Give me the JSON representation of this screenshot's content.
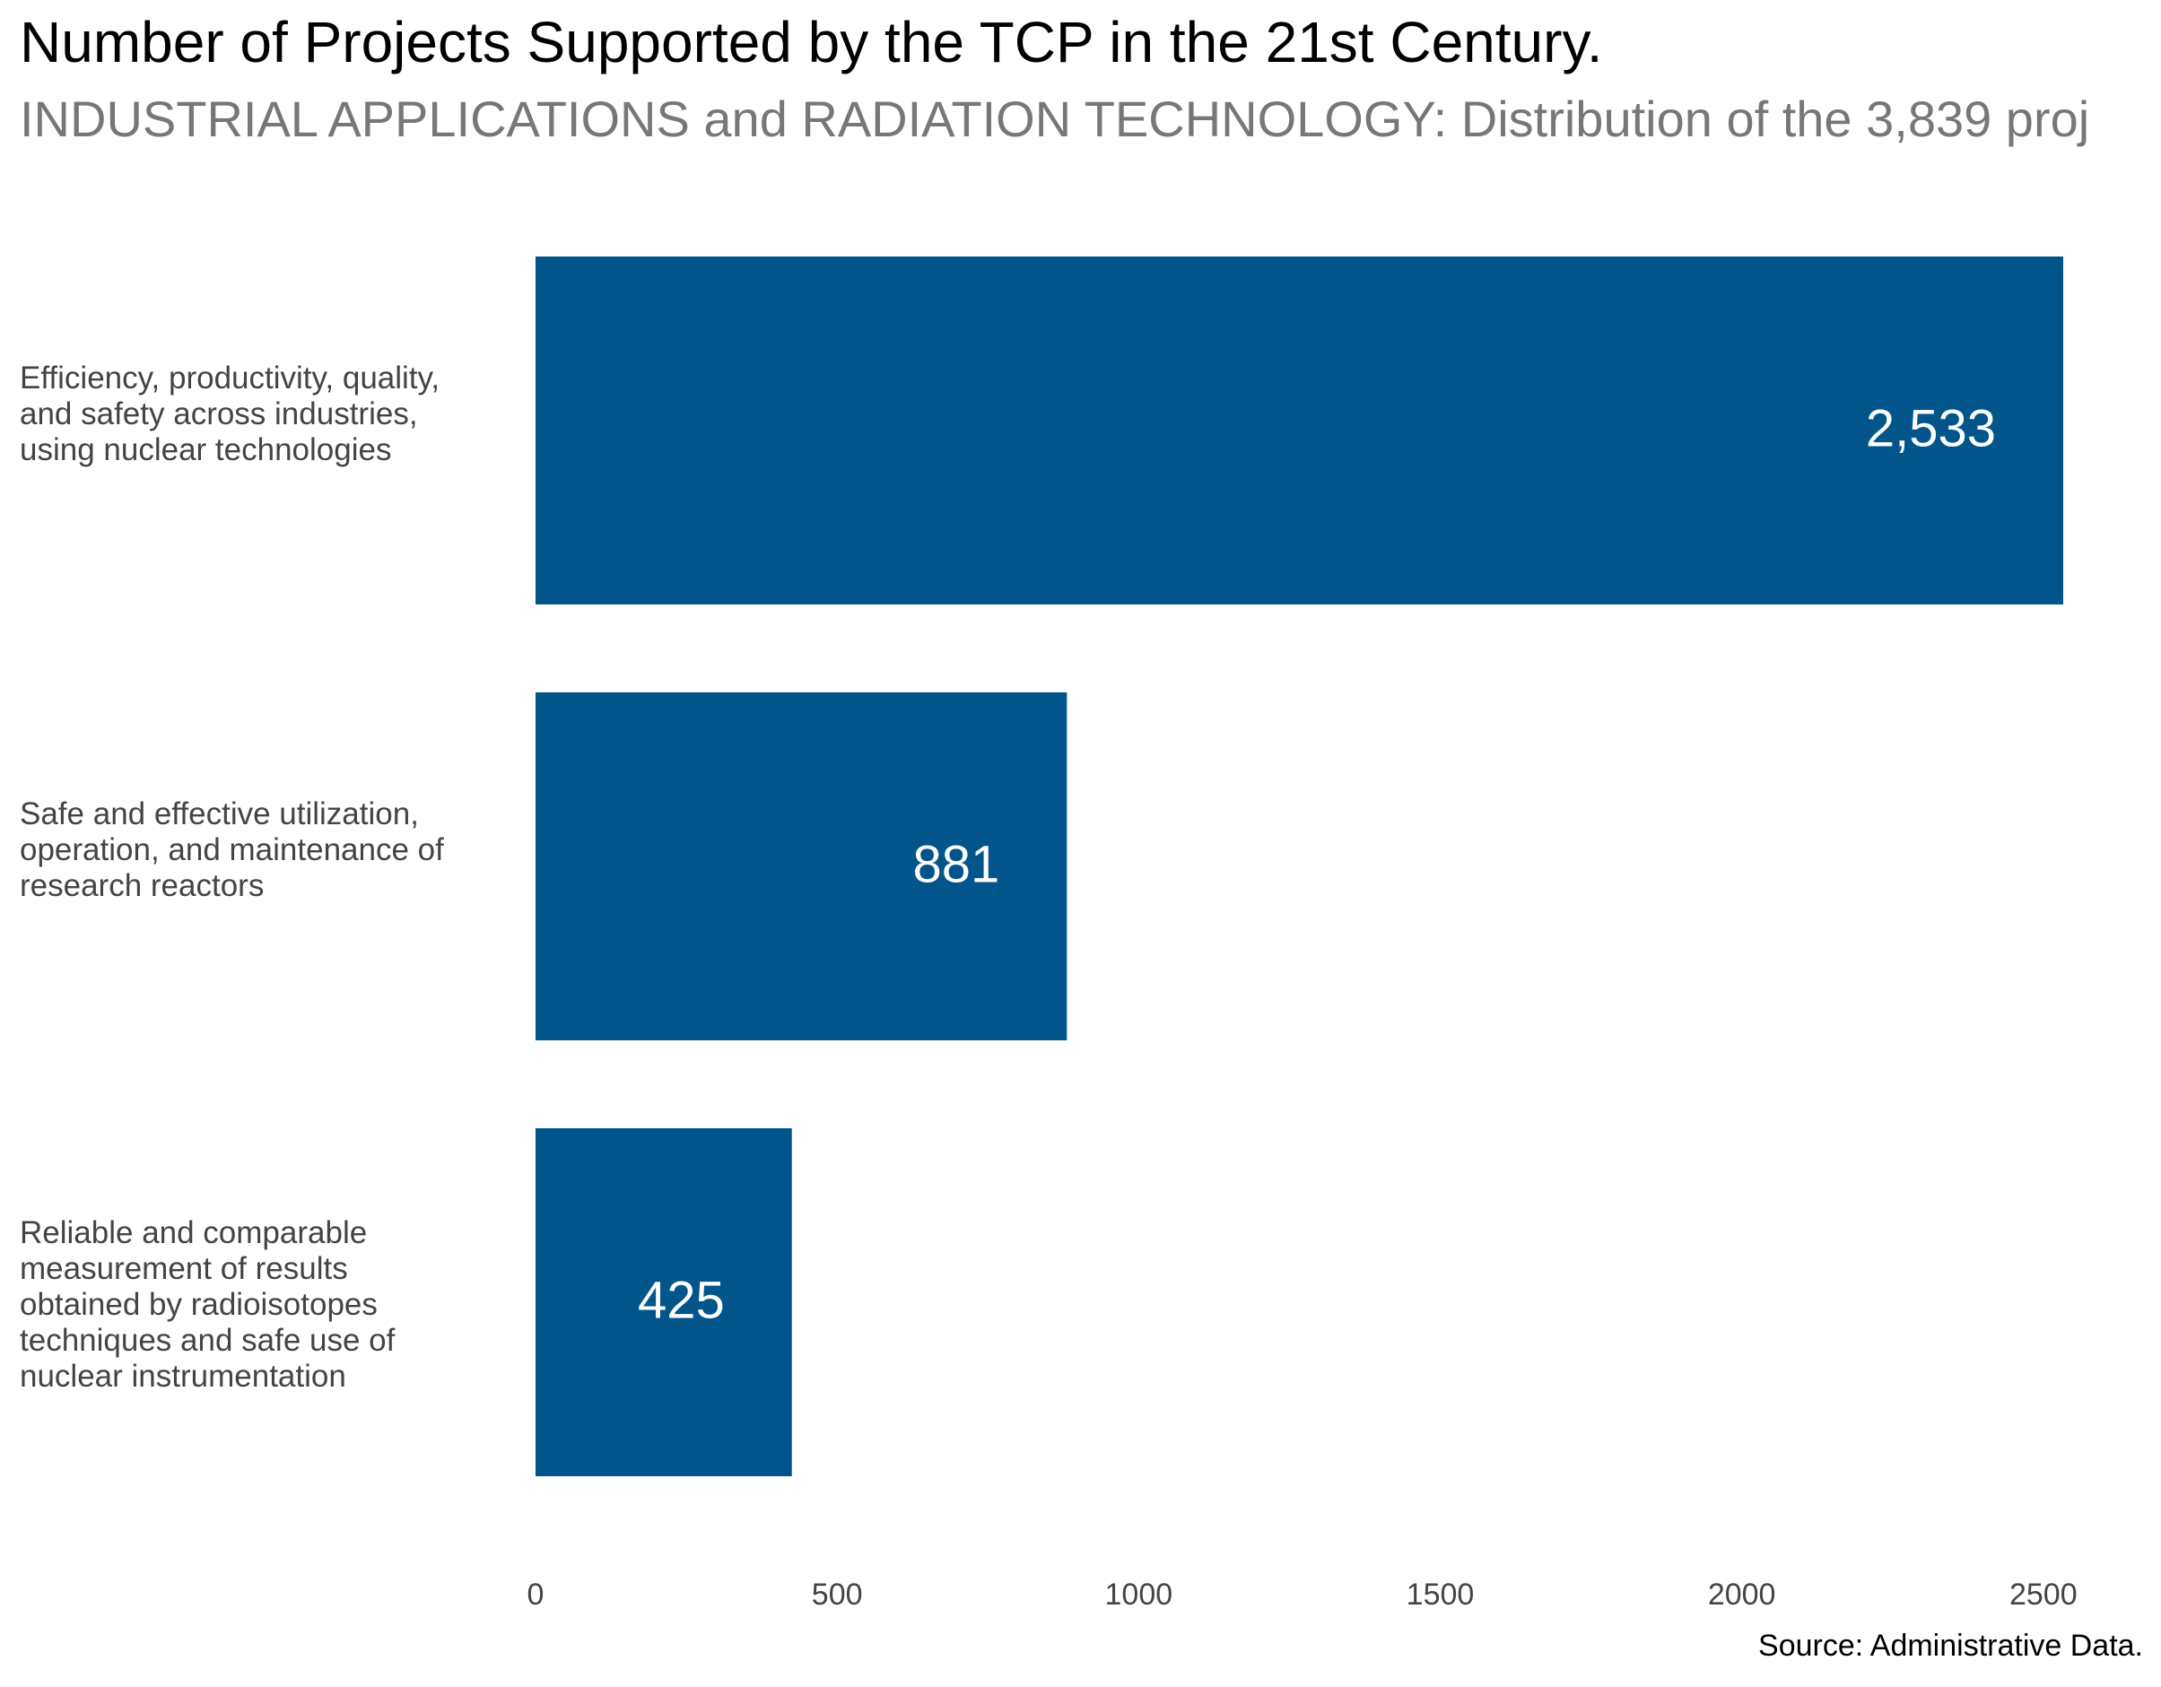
{
  "title": "Number of Projects Supported by the TCP in the 21st Century.",
  "subtitle": "INDUSTRIAL APPLICATIONS and RADIATION TECHNOLOGY: Distribution of the 3,839 proj",
  "source": "Source: Administrative Data.",
  "chart_data": {
    "type": "bar",
    "orientation": "horizontal",
    "title": "Number of Projects Supported by the TCP in the 21st Century.",
    "subtitle": "INDUSTRIAL APPLICATIONS and RADIATION TECHNOLOGY: Distribution of the 3,839 proj",
    "categories": [
      "Efficiency, productivity, quality, and safety across industries, using nuclear technologies",
      "Safe and effective utilization, operation, and maintenance of research reactors",
      "Reliable and comparable measurement of results obtained by radioisotopes techniques and safe use of nuclear instrumentation"
    ],
    "values": [
      2533,
      881,
      425
    ],
    "value_labels": [
      "2,533",
      "881",
      "425"
    ],
    "xticks": [
      0,
      500,
      1000,
      1500,
      2000,
      2500
    ],
    "xtick_labels": [
      "0",
      "500",
      "1000",
      "1500",
      "2000",
      "2500"
    ],
    "xlim": [
      0,
      2533
    ],
    "xlabel": "",
    "ylabel": "",
    "grid": false,
    "bar_color": "#02558b",
    "label_color": "#ffffff"
  }
}
